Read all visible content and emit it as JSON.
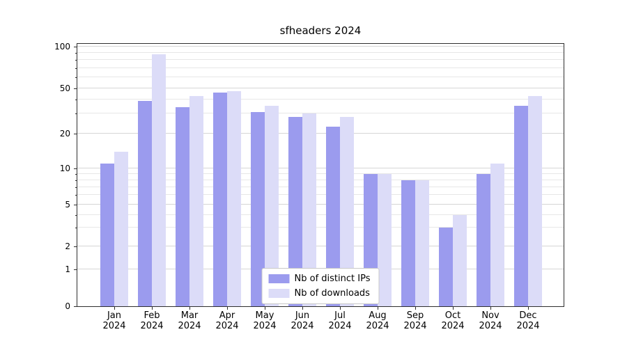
{
  "chart_data": {
    "type": "bar",
    "title": "sfheaders 2024",
    "categories": [
      "Jan 2024",
      "Feb 2024",
      "Mar 2024",
      "Apr 2024",
      "May 2024",
      "Jun 2024",
      "Jul 2024",
      "Aug 2024",
      "Sep 2024",
      "Oct 2024",
      "Nov 2024",
      "Dec 2024"
    ],
    "series": [
      {
        "name": "Nb of distinct IPs",
        "color": "#9b9bee",
        "values": [
          11,
          39,
          34,
          46,
          31,
          28,
          23,
          9,
          8,
          3,
          9,
          35
        ]
      },
      {
        "name": "Nb of downloads",
        "color": "#dcdcf8",
        "values": [
          14,
          88,
          43,
          47,
          35,
          30,
          28,
          9,
          8,
          4,
          11,
          43
        ]
      }
    ],
    "yscale": "symlog",
    "yticks": [
      0,
      1,
      2,
      5,
      10,
      20,
      50,
      100
    ],
    "minor_yticks": [
      3,
      4,
      6,
      7,
      8,
      9,
      30,
      40,
      60,
      70,
      80,
      90
    ],
    "ylim": [
      0,
      105
    ],
    "xlabel": "",
    "ylabel": "",
    "grid": true,
    "legend_position": "lower center"
  }
}
